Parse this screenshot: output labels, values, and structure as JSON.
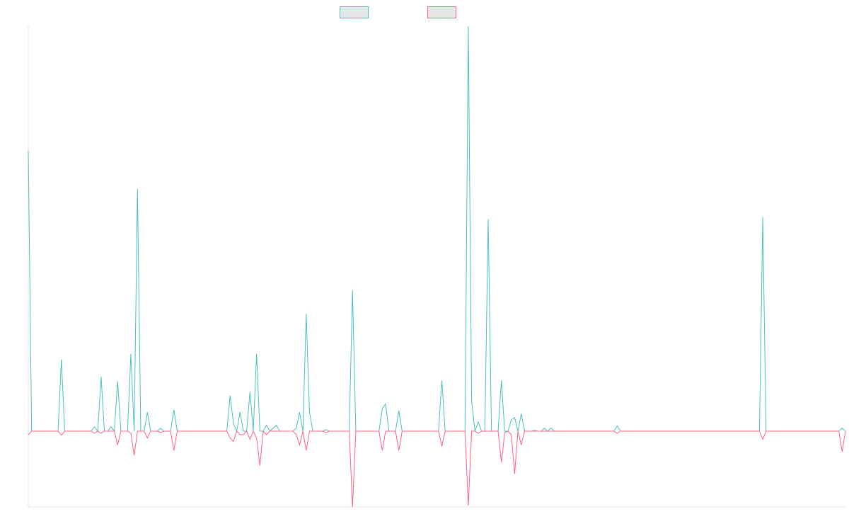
{
  "chart_data": {
    "type": "line",
    "title": "",
    "xlabel": "",
    "ylabel": "",
    "ylim": [
      -110,
      535
    ],
    "grid": false,
    "legend_position": "top-center",
    "axes": {
      "show_left_axis_line": true,
      "show_bottom_axis_line": true,
      "show_ticks": false
    },
    "point_count": 248,
    "series": [
      {
        "color": "#4bc0c0",
        "fill": "#e6e6e6",
        "points": [
          [
            0,
            370
          ],
          [
            1,
            0
          ],
          [
            3,
            0
          ],
          [
            9,
            0
          ],
          [
            10,
            95
          ],
          [
            11,
            0
          ],
          [
            19,
            0
          ],
          [
            20,
            6
          ],
          [
            21,
            0
          ],
          [
            22,
            72
          ],
          [
            23,
            0
          ],
          [
            24,
            0
          ],
          [
            25,
            6
          ],
          [
            26,
            0
          ],
          [
            27,
            66
          ],
          [
            28,
            0
          ],
          [
            30,
            0
          ],
          [
            31,
            102
          ],
          [
            32,
            0
          ],
          [
            33,
            320
          ],
          [
            34,
            0
          ],
          [
            35,
            0
          ],
          [
            36,
            25
          ],
          [
            37,
            0
          ],
          [
            39,
            0
          ],
          [
            40,
            4
          ],
          [
            41,
            0
          ],
          [
            43,
            0
          ],
          [
            44,
            28
          ],
          [
            45,
            0
          ],
          [
            60,
            0
          ],
          [
            61,
            47
          ],
          [
            62,
            10
          ],
          [
            63,
            0
          ],
          [
            64,
            25
          ],
          [
            65,
            0
          ],
          [
            66,
            0
          ],
          [
            67,
            52
          ],
          [
            68,
            0
          ],
          [
            69,
            102
          ],
          [
            70,
            0
          ],
          [
            71,
            0
          ],
          [
            72,
            8
          ],
          [
            73,
            0
          ],
          [
            74,
            4
          ],
          [
            75,
            8
          ],
          [
            76,
            0
          ],
          [
            80,
            0
          ],
          [
            81,
            4
          ],
          [
            82,
            25
          ],
          [
            83,
            0
          ],
          [
            84,
            155
          ],
          [
            85,
            25
          ],
          [
            86,
            0
          ],
          [
            89,
            0
          ],
          [
            90,
            2
          ],
          [
            91,
            0
          ],
          [
            97,
            0
          ],
          [
            98,
            186
          ],
          [
            99,
            0
          ],
          [
            106,
            0
          ],
          [
            107,
            30
          ],
          [
            108,
            36
          ],
          [
            109,
            0
          ],
          [
            111,
            0
          ],
          [
            112,
            27
          ],
          [
            113,
            0
          ],
          [
            124,
            0
          ],
          [
            125,
            67
          ],
          [
            126,
            0
          ],
          [
            132,
            0
          ],
          [
            133,
            535
          ],
          [
            134,
            40
          ],
          [
            135,
            0
          ],
          [
            136,
            12
          ],
          [
            137,
            0
          ],
          [
            138,
            0
          ],
          [
            139,
            280
          ],
          [
            140,
            0
          ],
          [
            141,
            0
          ],
          [
            142,
            0
          ],
          [
            143,
            67
          ],
          [
            144,
            0
          ],
          [
            145,
            0
          ],
          [
            146,
            15
          ],
          [
            147,
            18
          ],
          [
            148,
            0
          ],
          [
            149,
            23
          ],
          [
            150,
            0
          ],
          [
            152,
            0
          ],
          [
            153,
            1
          ],
          [
            154,
            0
          ],
          [
            155,
            0
          ],
          [
            156,
            4
          ],
          [
            157,
            0
          ],
          [
            158,
            4
          ],
          [
            159,
            0
          ],
          [
            177,
            0
          ],
          [
            178,
            7
          ],
          [
            179,
            0
          ],
          [
            221,
            0
          ],
          [
            222,
            283
          ],
          [
            223,
            0
          ],
          [
            245,
            0
          ],
          [
            246,
            4
          ],
          [
            247,
            0
          ]
        ]
      },
      {
        "color": "#ff6384",
        "fill": "#e6e6e6",
        "points": [
          [
            0,
            -5
          ],
          [
            1,
            0
          ],
          [
            3,
            0
          ],
          [
            9,
            0
          ],
          [
            10,
            -6
          ],
          [
            11,
            0
          ],
          [
            19,
            0
          ],
          [
            20,
            -3
          ],
          [
            21,
            0
          ],
          [
            22,
            -3
          ],
          [
            23,
            0
          ],
          [
            26,
            0
          ],
          [
            27,
            -20
          ],
          [
            28,
            0
          ],
          [
            30,
            0
          ],
          [
            31,
            -3
          ],
          [
            32,
            -35
          ],
          [
            33,
            0
          ],
          [
            35,
            0
          ],
          [
            36,
            -10
          ],
          [
            37,
            0
          ],
          [
            39,
            0
          ],
          [
            40,
            -2
          ],
          [
            41,
            0
          ],
          [
            43,
            0
          ],
          [
            44,
            -28
          ],
          [
            45,
            0
          ],
          [
            60,
            0
          ],
          [
            61,
            -10
          ],
          [
            62,
            -15
          ],
          [
            63,
            0
          ],
          [
            64,
            -5
          ],
          [
            65,
            -5
          ],
          [
            66,
            0
          ],
          [
            67,
            -12
          ],
          [
            68,
            0
          ],
          [
            69,
            -10
          ],
          [
            70,
            -50
          ],
          [
            71,
            0
          ],
          [
            72,
            -5
          ],
          [
            73,
            0
          ],
          [
            80,
            0
          ],
          [
            81,
            -5
          ],
          [
            82,
            -20
          ],
          [
            83,
            0
          ],
          [
            84,
            -28
          ],
          [
            85,
            0
          ],
          [
            89,
            0
          ],
          [
            90,
            -2
          ],
          [
            91,
            0
          ],
          [
            97,
            0
          ],
          [
            98,
            -110
          ],
          [
            99,
            0
          ],
          [
            106,
            0
          ],
          [
            107,
            -28
          ],
          [
            108,
            0
          ],
          [
            111,
            0
          ],
          [
            112,
            -28
          ],
          [
            113,
            0
          ],
          [
            124,
            0
          ],
          [
            125,
            -22
          ],
          [
            126,
            0
          ],
          [
            132,
            0
          ],
          [
            133,
            -108
          ],
          [
            134,
            0
          ],
          [
            135,
            0
          ],
          [
            136,
            -3
          ],
          [
            137,
            0
          ],
          [
            138,
            0
          ],
          [
            139,
            0
          ],
          [
            140,
            0
          ],
          [
            142,
            0
          ],
          [
            143,
            -45
          ],
          [
            144,
            -2
          ],
          [
            145,
            0
          ],
          [
            146,
            -5
          ],
          [
            147,
            -62
          ],
          [
            148,
            0
          ],
          [
            149,
            -20
          ],
          [
            150,
            0
          ],
          [
            177,
            0
          ],
          [
            178,
            -3
          ],
          [
            179,
            0
          ],
          [
            221,
            0
          ],
          [
            222,
            -12
          ],
          [
            223,
            0
          ],
          [
            245,
            0
          ],
          [
            246,
            -30
          ],
          [
            247,
            0
          ]
        ]
      }
    ]
  }
}
